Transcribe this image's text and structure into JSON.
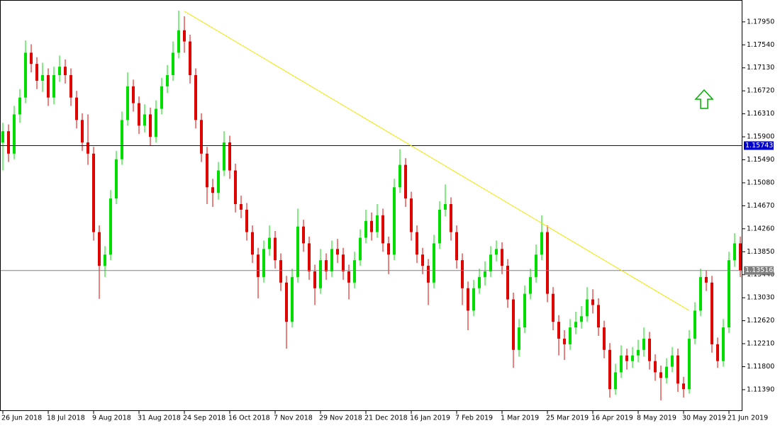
{
  "chart_data": {
    "type": "candlestick",
    "bull_color": "#00dd00",
    "bear_color": "#dd0000",
    "xlim": [
      -0.5,
      130.375
    ],
    "ylim": [
      1.1101,
      1.1834
    ],
    "open": [
      1.158,
      1.16,
      1.156,
      1.163,
      1.166,
      1.174,
      1.172,
      1.169,
      1.17,
      1.166,
      1.17,
      1.1715,
      1.17,
      1.166,
      1.162,
      1.158,
      1.156,
      1.142,
      1.136,
      1.138,
      1.148,
      1.155,
      1.162,
      1.168,
      1.165,
      1.161,
      1.163,
      1.159,
      1.164,
      1.168,
      1.17,
      1.174,
      1.178,
      1.176,
      1.17,
      1.162,
      1.156,
      1.15,
      1.149,
      1.153,
      1.158,
      1.153,
      1.147,
      1.146,
      1.142,
      1.138,
      1.134,
      1.139,
      1.141,
      1.137,
      1.133,
      1.126,
      1.134,
      1.143,
      1.14,
      1.135,
      1.132,
      1.137,
      1.135,
      1.139,
      1.138,
      1.135,
      1.133,
      1.137,
      1.141,
      1.144,
      1.142,
      1.145,
      1.14,
      1.138,
      1.15,
      1.154,
      1.148,
      1.142,
      1.138,
      1.136,
      1.133,
      1.14,
      1.146,
      1.147,
      1.142,
      1.137,
      1.132,
      1.128,
      1.132,
      1.134,
      1.135,
      1.138,
      1.139,
      1.136,
      1.13,
      1.121,
      1.125,
      1.131,
      1.134,
      1.138,
      1.142,
      1.131,
      1.126,
      1.123,
      1.122,
      1.125,
      1.126,
      1.127,
      1.13,
      1.129,
      1.125,
      1.121,
      1.114,
      1.117,
      1.12,
      1.119,
      1.12,
      1.121,
      1.123,
      1.119,
      1.117,
      1.116,
      1.118,
      1.12,
      1.115,
      1.114,
      1.123,
      1.128,
      1.134,
      1.133,
      1.122,
      1.119,
      1.125,
      1.137,
      1.14
    ],
    "high": [
      1.1615,
      1.1612,
      1.1645,
      1.1675,
      1.1762,
      1.1755,
      1.1732,
      1.1722,
      1.1712,
      1.1715,
      1.1735,
      1.1728,
      1.1712,
      1.1672,
      1.1632,
      1.163,
      1.1572,
      1.1432,
      1.1395,
      1.1495,
      1.1565,
      1.1635,
      1.1705,
      1.1692,
      1.1662,
      1.1648,
      1.1642,
      1.1655,
      1.1695,
      1.1718,
      1.176,
      1.1815,
      1.1805,
      1.1772,
      1.1712,
      1.1632,
      1.1572,
      1.1515,
      1.1545,
      1.16,
      1.1592,
      1.1542,
      1.1485,
      1.1472,
      1.1432,
      1.1392,
      1.1405,
      1.1432,
      1.1422,
      1.1382,
      1.1342,
      1.1355,
      1.1462,
      1.1442,
      1.1412,
      1.1362,
      1.139,
      1.1382,
      1.1405,
      1.1408,
      1.1392,
      1.1362,
      1.1385,
      1.1425,
      1.146,
      1.1455,
      1.147,
      1.1462,
      1.1412,
      1.1515,
      1.1568,
      1.1552,
      1.1492,
      1.1432,
      1.1392,
      1.1372,
      1.1415,
      1.1475,
      1.1505,
      1.1482,
      1.1432,
      1.1382,
      1.1332,
      1.1335,
      1.1355,
      1.1368,
      1.1395,
      1.1405,
      1.1402,
      1.1372,
      1.1312,
      1.1265,
      1.1325,
      1.1355,
      1.1398,
      1.145,
      1.1432,
      1.1322,
      1.1272,
      1.1245,
      1.1265,
      1.1278,
      1.1288,
      1.1322,
      1.1318,
      1.1302,
      1.1262,
      1.1222,
      1.1185,
      1.1218,
      1.1212,
      1.1215,
      1.1228,
      1.125,
      1.1242,
      1.1202,
      1.1182,
      1.1195,
      1.1215,
      1.1212,
      1.1162,
      1.1245,
      1.1295,
      1.1355,
      1.1352,
      1.1342,
      1.1232,
      1.1265,
      1.1385,
      1.1418,
      1.1412
    ],
    "low": [
      1.153,
      1.1545,
      1.155,
      1.1615,
      1.165,
      1.1705,
      1.1675,
      1.167,
      1.1645,
      1.1648,
      1.1688,
      1.1685,
      1.1645,
      1.1605,
      1.1565,
      1.154,
      1.1405,
      1.1301,
      1.134,
      1.137,
      1.147,
      1.154,
      1.161,
      1.1635,
      1.1595,
      1.1598,
      1.1575,
      1.158,
      1.163,
      1.1668,
      1.169,
      1.173,
      1.174,
      1.1685,
      1.1605,
      1.1545,
      1.147,
      1.1465,
      1.1478,
      1.152,
      1.1515,
      1.1455,
      1.1445,
      1.1405,
      1.1365,
      1.1302,
      1.133,
      1.1378,
      1.1355,
      1.1315,
      1.1212,
      1.125,
      1.133,
      1.1385,
      1.1335,
      1.129,
      1.131,
      1.1335,
      1.134,
      1.1365,
      1.1335,
      1.13,
      1.132,
      1.136,
      1.14,
      1.1405,
      1.141,
      1.1385,
      1.1345,
      1.137,
      1.149,
      1.1465,
      1.1405,
      1.1365,
      1.1345,
      1.129,
      1.132,
      1.139,
      1.1448,
      1.1405,
      1.1355,
      1.129,
      1.1245,
      1.127,
      1.131,
      1.1325,
      1.134,
      1.1368,
      1.1345,
      1.1285,
      1.1178,
      1.1198,
      1.124,
      1.13,
      1.133,
      1.137,
      1.1295,
      1.1245,
      1.12,
      1.1192,
      1.121,
      1.1238,
      1.1248,
      1.126,
      1.1275,
      1.1235,
      1.1195,
      1.1125,
      1.113,
      1.116,
      1.1175,
      1.1178,
      1.1188,
      1.1198,
      1.1175,
      1.1155,
      1.112,
      1.115,
      1.117,
      1.1135,
      1.1125,
      1.1132,
      1.122,
      1.127,
      1.1315,
      1.1205,
      1.1178,
      1.118,
      1.124,
      1.1358,
      1.134
    ],
    "close": [
      1.16,
      1.156,
      1.163,
      1.166,
      1.174,
      1.172,
      1.169,
      1.17,
      1.166,
      1.17,
      1.1715,
      1.17,
      1.166,
      1.162,
      1.158,
      1.156,
      1.142,
      1.136,
      1.138,
      1.148,
      1.155,
      1.162,
      1.168,
      1.165,
      1.161,
      1.163,
      1.159,
      1.164,
      1.168,
      1.17,
      1.174,
      1.178,
      1.176,
      1.17,
      1.162,
      1.156,
      1.15,
      1.149,
      1.153,
      1.158,
      1.153,
      1.147,
      1.146,
      1.142,
      1.138,
      1.134,
      1.139,
      1.141,
      1.137,
      1.133,
      1.126,
      1.134,
      1.143,
      1.14,
      1.135,
      1.132,
      1.137,
      1.135,
      1.139,
      1.138,
      1.135,
      1.133,
      1.137,
      1.141,
      1.144,
      1.142,
      1.145,
      1.14,
      1.138,
      1.15,
      1.154,
      1.148,
      1.142,
      1.138,
      1.136,
      1.133,
      1.14,
      1.146,
      1.147,
      1.142,
      1.137,
      1.132,
      1.128,
      1.132,
      1.134,
      1.135,
      1.138,
      1.139,
      1.136,
      1.13,
      1.121,
      1.125,
      1.131,
      1.134,
      1.138,
      1.142,
      1.131,
      1.126,
      1.123,
      1.122,
      1.125,
      1.126,
      1.127,
      1.13,
      1.129,
      1.125,
      1.121,
      1.114,
      1.117,
      1.12,
      1.119,
      1.12,
      1.121,
      1.123,
      1.119,
      1.117,
      1.116,
      1.118,
      1.12,
      1.115,
      1.114,
      1.123,
      1.128,
      1.134,
      1.133,
      1.122,
      1.119,
      1.125,
      1.137,
      1.14,
      1.1352
    ],
    "xticks": [
      {
        "value": 0,
        "label": "26 Jun 2018"
      },
      {
        "value": 8,
        "label": "18 Jul 2018"
      },
      {
        "value": 16,
        "label": "9 Aug 2018"
      },
      {
        "value": 24,
        "label": "31 Aug 2018"
      },
      {
        "value": 32,
        "label": "24 Sep 2018"
      },
      {
        "value": 40,
        "label": "16 Oct 2018"
      },
      {
        "value": 48,
        "label": "7 Nov 2018"
      },
      {
        "value": 56,
        "label": "29 Nov 2018"
      },
      {
        "value": 64,
        "label": "21 Dec 2018"
      },
      {
        "value": 72,
        "label": "16 Jan 2019"
      },
      {
        "value": 80,
        "label": "7 Feb 2019"
      },
      {
        "value": 88,
        "label": "1 Mar 2019"
      },
      {
        "value": 96,
        "label": "25 Mar 2019"
      },
      {
        "value": 104,
        "label": "16 Apr 2019"
      },
      {
        "value": 112,
        "label": "8 May 2019"
      },
      {
        "value": 120,
        "label": "30 May 2019"
      },
      {
        "value": 128,
        "label": "21 Jun 2019"
      }
    ],
    "yticks": [
      {
        "value": 1.1795,
        "label": "1.17950"
      },
      {
        "value": 1.1754,
        "label": "1.17540"
      },
      {
        "value": 1.1713,
        "label": "1.17130"
      },
      {
        "value": 1.1672,
        "label": "1.16720"
      },
      {
        "value": 1.1631,
        "label": "1.16310"
      },
      {
        "value": 1.159,
        "label": "1.15900"
      },
      {
        "value": 1.1549,
        "label": "1.15490"
      },
      {
        "value": 1.1508,
        "label": "1.15080"
      },
      {
        "value": 1.1467,
        "label": "1.14670"
      },
      {
        "value": 1.1426,
        "label": "1.14260"
      },
      {
        "value": 1.1385,
        "label": "1.13850"
      },
      {
        "value": 1.1344,
        "label": "1.13440"
      },
      {
        "value": 1.1303,
        "label": "1.13030"
      },
      {
        "value": 1.1262,
        "label": "1.12620"
      },
      {
        "value": 1.1221,
        "label": "1.12210"
      },
      {
        "value": 1.118,
        "label": "1.11800"
      },
      {
        "value": 1.1139,
        "label": "1.11390"
      }
    ],
    "hlines": [
      {
        "value": 1.15743,
        "color": "#0000c8"
      },
      {
        "value": 1.13516,
        "color": "#808080"
      }
    ],
    "trendline": {
      "x": [
        32,
        121
      ],
      "values": [
        1.1814,
        1.128
      ],
      "color": "#f2e600"
    }
  }
}
